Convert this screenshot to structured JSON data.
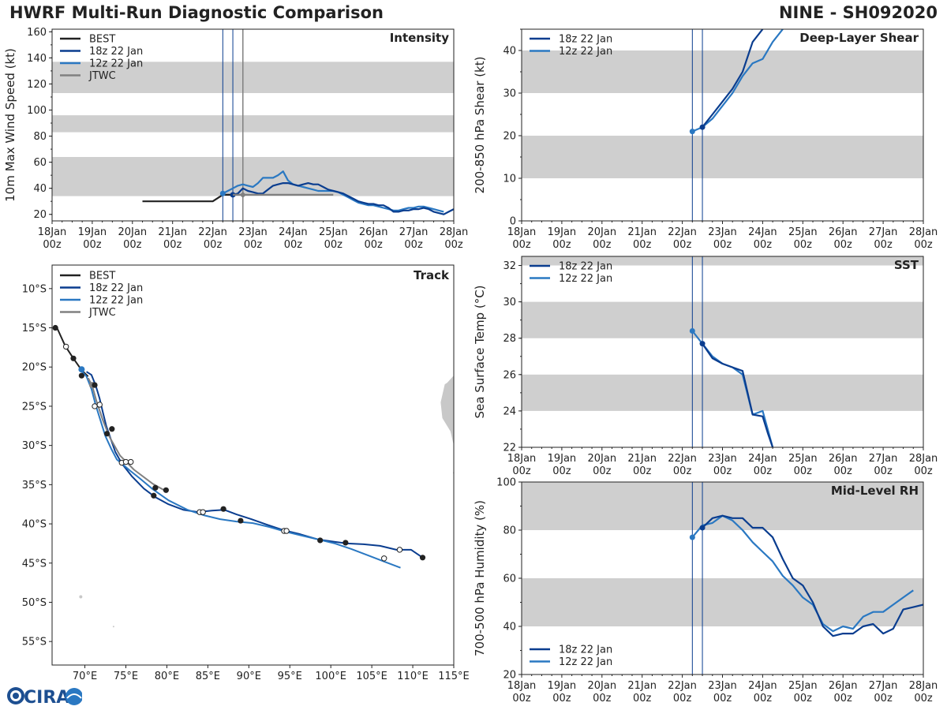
{
  "header": {
    "title": "HWRF Multi-Run Diagnostic Comparison",
    "storm": "NINE - SH092020"
  },
  "logo": {
    "text": "CIRA"
  },
  "colors": {
    "best": "#222222",
    "run18": "#0a3d8f",
    "run12": "#2a78c2",
    "jtwc": "#808080",
    "band": "#cfcfcf",
    "land": "#c8c8c8"
  },
  "chart_data": [
    {
      "id": "intensity",
      "type": "line",
      "title": "Intensity",
      "ylabel": "10m Max Wind Speed (kt)",
      "ylim": [
        15,
        162
      ],
      "yticks": [
        20,
        40,
        60,
        80,
        100,
        120,
        140,
        160
      ],
      "bands": [
        [
          34,
          64
        ],
        [
          83,
          96
        ],
        [
          113,
          137
        ]
      ],
      "xlim_hours": [
        0,
        240
      ],
      "xticks": [
        [
          "18Jan",
          "00z"
        ],
        [
          "19Jan",
          "00z"
        ],
        [
          "20Jan",
          "00z"
        ],
        [
          "21Jan",
          "00z"
        ],
        [
          "22Jan",
          "00z"
        ],
        [
          "23Jan",
          "00z"
        ],
        [
          "24Jan",
          "00z"
        ],
        [
          "25Jan",
          "00z"
        ],
        [
          "26Jan",
          "00z"
        ],
        [
          "27Jan",
          "00z"
        ],
        [
          "28Jan",
          "00z"
        ]
      ],
      "init_lines_hours": [
        102,
        108
      ],
      "current_line_hours": 114,
      "legend": [
        "BEST",
        "18z 22 Jan",
        "12z 22 Jan",
        "JTWC"
      ],
      "series": [
        {
          "name": "BEST",
          "key": "best",
          "x": [
            54,
            60,
            66,
            72,
            78,
            84,
            90,
            96,
            102,
            108
          ],
          "y": [
            30,
            30,
            30,
            30,
            30,
            30,
            30,
            30,
            35,
            35
          ]
        },
        {
          "name": "12z 22 Jan",
          "key": "run12",
          "x": [
            102,
            105,
            108,
            111,
            114,
            117,
            120,
            123,
            126,
            129,
            132,
            135,
            138,
            141,
            144,
            147,
            150,
            153,
            156,
            159,
            162,
            165,
            168,
            171,
            174,
            177,
            180,
            183,
            186,
            189,
            192,
            195,
            198,
            201,
            204,
            207,
            210,
            213,
            216,
            219,
            222,
            225,
            228,
            231,
            234
          ],
          "y": [
            36,
            38,
            40,
            42,
            43,
            42,
            41,
            44,
            48,
            48,
            48,
            50,
            53,
            46,
            43,
            42,
            41,
            40,
            39,
            38,
            38,
            38,
            38,
            37,
            35,
            33,
            31,
            29,
            28,
            27,
            27,
            26,
            25,
            24,
            23,
            23,
            24,
            25,
            25,
            26,
            26,
            25,
            24,
            23,
            22
          ]
        },
        {
          "name": "18z 22 Jan",
          "key": "run18",
          "x": [
            108,
            111,
            114,
            117,
            120,
            123,
            126,
            129,
            132,
            135,
            138,
            141,
            144,
            147,
            150,
            153,
            156,
            159,
            162,
            165,
            168,
            171,
            174,
            177,
            180,
            183,
            186,
            189,
            192,
            195,
            198,
            201,
            204,
            207,
            210,
            213,
            216,
            219,
            222,
            225,
            228,
            231,
            234,
            237,
            240
          ],
          "y": [
            35,
            36,
            40,
            38,
            37,
            36,
            36,
            39,
            42,
            43,
            44,
            44,
            43,
            42,
            43,
            44,
            43,
            43,
            41,
            39,
            38,
            37,
            36,
            34,
            32,
            30,
            29,
            28,
            28,
            27,
            27,
            25,
            22,
            22,
            23,
            23,
            24,
            24,
            25,
            24,
            22,
            21,
            20,
            22,
            24
          ]
        },
        {
          "name": "JTWC",
          "key": "jtwc",
          "x": [
            108,
            114,
            120,
            132,
            144,
            156,
            168
          ],
          "y": [
            35,
            35,
            35,
            35,
            35,
            35,
            35
          ],
          "markers": [
            114
          ]
        }
      ]
    },
    {
      "id": "track",
      "type": "line",
      "title": "Track",
      "xlim": [
        66,
        115
      ],
      "ylim": [
        -58,
        -7
      ],
      "xticks": [
        70,
        75,
        80,
        85,
        90,
        95,
        100,
        105,
        110,
        115
      ],
      "xticklabels": [
        "70°E",
        "75°E",
        "80°E",
        "85°E",
        "90°E",
        "95°E",
        "100°E",
        "105°E",
        "110°E",
        "115°E"
      ],
      "yticks": [
        -10,
        -15,
        -20,
        -25,
        -30,
        -35,
        -40,
        -45,
        -50,
        -55
      ],
      "yticklabels": [
        "10°S",
        "15°S",
        "20°S",
        "25°S",
        "30°S",
        "35°S",
        "40°S",
        "45°S",
        "50°S",
        "55°S"
      ],
      "legend": [
        "BEST",
        "18z 22 Jan",
        "12z 22 Jan",
        "JTWC"
      ],
      "series": [
        {
          "name": "BEST",
          "key": "best",
          "lon": [
            66.2,
            66.6,
            67.6,
            68.6,
            69.6,
            70.4
          ],
          "lat": [
            -14.8,
            -15.0,
            -17.3,
            -18.9,
            -20.4,
            -21.2
          ]
        },
        {
          "name": "18z 22 Jan",
          "key": "run18",
          "lon": [
            70.2,
            70.8,
            71.3,
            71.8,
            72.2,
            72.6,
            73.2,
            73.7,
            74.5,
            75.7,
            77.2,
            78.6,
            80.2,
            82.0,
            83.8,
            85.5,
            87.0,
            88.5,
            90.3,
            92.2,
            94.2,
            96.2,
            98.5,
            100.5,
            102.0,
            104.0,
            106.0,
            108.0,
            109.8,
            111.2
          ],
          "lat": [
            -20.6,
            -21.0,
            -22.3,
            -24.0,
            -25.8,
            -27.5,
            -29.3,
            -30.8,
            -32.3,
            -33.9,
            -35.5,
            -36.6,
            -37.5,
            -38.2,
            -38.5,
            -38.3,
            -38.2,
            -38.8,
            -39.4,
            -40.1,
            -40.8,
            -41.3,
            -42.0,
            -42.3,
            -42.5,
            -42.6,
            -42.8,
            -43.3,
            -43.3,
            -44.3
          ]
        },
        {
          "name": "12z 22 Jan",
          "key": "run12",
          "lon": [
            69.4,
            70.2,
            70.8,
            71.3,
            71.9,
            72.5,
            73.2,
            73.9,
            74.6,
            75.5,
            76.7,
            78.3,
            80.2,
            82.5,
            84.5,
            86.5,
            88.5,
            90.5,
            92.5,
            94.5,
            96.5,
            98.5,
            100.5,
            102.5,
            104.5,
            106.5,
            108.5
          ],
          "lat": [
            -20.3,
            -21.2,
            -22.8,
            -24.8,
            -26.8,
            -28.8,
            -30.4,
            -31.8,
            -32.4,
            -33.2,
            -34.2,
            -35.6,
            -37.0,
            -38.2,
            -38.9,
            -39.4,
            -39.7,
            -39.9,
            -40.4,
            -41.0,
            -41.5,
            -42.0,
            -42.5,
            -43.2,
            -44.0,
            -44.8,
            -45.6
          ]
        },
        {
          "name": "JTWC",
          "key": "jtwc",
          "lon": [
            70.4,
            70.9,
            71.4,
            72.2,
            73.0,
            74.3,
            76.0,
            78.3,
            80.0
          ],
          "lat": [
            -21.4,
            -22.4,
            -24.3,
            -26.8,
            -28.9,
            -31.3,
            -33.1,
            -34.9,
            -35.9
          ]
        }
      ],
      "markers_best_filled": [
        [
          66.4,
          -15.0
        ],
        [
          68.6,
          -18.9
        ],
        [
          69.6,
          -21.1
        ],
        [
          71.2,
          -22.3
        ]
      ],
      "markers_filled": [
        [
          72.7,
          -28.5
        ],
        [
          73.3,
          -27.9
        ],
        [
          78.4,
          -36.4
        ],
        [
          78.6,
          -35.4
        ],
        [
          79.9,
          -35.7
        ],
        [
          86.9,
          -38.1
        ],
        [
          89.0,
          -39.6
        ],
        [
          98.7,
          -42.1
        ],
        [
          101.8,
          -42.4
        ],
        [
          111.2,
          -44.3
        ]
      ],
      "markers_open": [
        [
          67.7,
          -17.4
        ],
        [
          71.2,
          -25.0
        ],
        [
          71.8,
          -24.8
        ],
        [
          74.5,
          -32.2
        ],
        [
          75.0,
          -32.1
        ],
        [
          75.6,
          -32.1
        ],
        [
          84.0,
          -38.5
        ],
        [
          84.4,
          -38.5
        ],
        [
          94.3,
          -40.9
        ],
        [
          94.6,
          -40.9
        ],
        [
          106.5,
          -44.4
        ],
        [
          108.4,
          -43.3
        ]
      ]
    },
    {
      "id": "shear",
      "type": "line",
      "title": "Deep-Layer Shear",
      "ylabel": "200-850 hPa Shear (kt)",
      "ylim": [
        0,
        45
      ],
      "yticks": [
        0,
        10,
        20,
        30,
        40
      ],
      "bands": [
        [
          10,
          20
        ],
        [
          30,
          40
        ]
      ],
      "xlim_hours": [
        0,
        240
      ],
      "init_lines_hours": [
        102,
        108
      ],
      "legend": [
        "18z 22 Jan",
        "12z 22 Jan"
      ],
      "series": [
        {
          "name": "12z 22 Jan",
          "key": "run12",
          "x": [
            102,
            108,
            114,
            120,
            126,
            132,
            138,
            144,
            150,
            156
          ],
          "y": [
            21,
            22,
            24,
            27,
            30,
            34,
            37,
            38,
            42,
            45
          ]
        },
        {
          "name": "18z 22 Jan",
          "key": "run18",
          "x": [
            108,
            114,
            120,
            126,
            132,
            138,
            144
          ],
          "y": [
            22,
            25,
            28,
            31,
            35,
            42,
            45
          ]
        }
      ]
    },
    {
      "id": "sst",
      "type": "line",
      "title": "SST",
      "ylabel": "Sea Surface Temp (°C)",
      "ylim": [
        22,
        32.5
      ],
      "yticks": [
        22,
        24,
        26,
        28,
        30,
        32
      ],
      "bands": [
        [
          24,
          26
        ],
        [
          28,
          30
        ],
        [
          32,
          32.5
        ]
      ],
      "xlim_hours": [
        0,
        240
      ],
      "init_lines_hours": [
        102,
        108
      ],
      "legend": [
        "18z 22 Jan",
        "12z 22 Jan"
      ],
      "series": [
        {
          "name": "12z 22 Jan",
          "key": "run12",
          "x": [
            102,
            108,
            114,
            120,
            126,
            132,
            138,
            144,
            147,
            150
          ],
          "y": [
            28.4,
            27.7,
            27.0,
            26.6,
            26.4,
            26.0,
            23.8,
            24.0,
            23.0,
            22.0
          ]
        },
        {
          "name": "18z 22 Jan",
          "key": "run18",
          "x": [
            108,
            114,
            120,
            126,
            132,
            138,
            144,
            147,
            150
          ],
          "y": [
            27.7,
            26.9,
            26.6,
            26.4,
            26.2,
            23.8,
            23.7,
            22.8,
            22.0
          ]
        }
      ]
    },
    {
      "id": "rh",
      "type": "line",
      "title": "Mid-Level RH",
      "ylabel": "700-500 hPa Humidity (%)",
      "ylim": [
        20,
        100
      ],
      "yticks": [
        20,
        40,
        60,
        80,
        100
      ],
      "bands": [
        [
          40,
          60
        ],
        [
          80,
          100
        ]
      ],
      "xlim_hours": [
        0,
        240
      ],
      "xticks": [
        [
          "18Jan",
          "00z"
        ],
        [
          "19Jan",
          "00z"
        ],
        [
          "20Jan",
          "00z"
        ],
        [
          "21Jan",
          "00z"
        ],
        [
          "22Jan",
          "00z"
        ],
        [
          "23Jan",
          "00z"
        ],
        [
          "24Jan",
          "00z"
        ],
        [
          "25Jan",
          "00z"
        ],
        [
          "26Jan",
          "00z"
        ],
        [
          "27Jan",
          "00z"
        ],
        [
          "28Jan",
          "00z"
        ]
      ],
      "init_lines_hours": [
        102,
        108
      ],
      "legend": [
        "18z 22 Jan",
        "12z 22 Jan"
      ],
      "series": [
        {
          "name": "12z 22 Jan",
          "key": "run12",
          "x": [
            102,
            108,
            114,
            120,
            126,
            132,
            138,
            144,
            150,
            156,
            162,
            168,
            174,
            180,
            186,
            192,
            198,
            204,
            210,
            216,
            222,
            228,
            234
          ],
          "y": [
            77,
            82,
            83,
            86,
            84,
            80,
            75,
            71,
            67,
            61,
            57,
            52,
            49,
            41,
            38,
            40,
            39,
            44,
            46,
            46,
            49,
            52,
            55
          ]
        },
        {
          "name": "18z 22 Jan",
          "key": "run18",
          "x": [
            108,
            114,
            120,
            126,
            132,
            138,
            144,
            150,
            156,
            162,
            168,
            174,
            180,
            186,
            192,
            198,
            204,
            210,
            216,
            222,
            228,
            234,
            240
          ],
          "y": [
            81,
            85,
            86,
            85,
            85,
            81,
            81,
            77,
            68,
            60,
            57,
            50,
            40,
            36,
            37,
            37,
            40,
            41,
            37,
            39,
            47,
            48,
            49
          ]
        }
      ]
    }
  ]
}
